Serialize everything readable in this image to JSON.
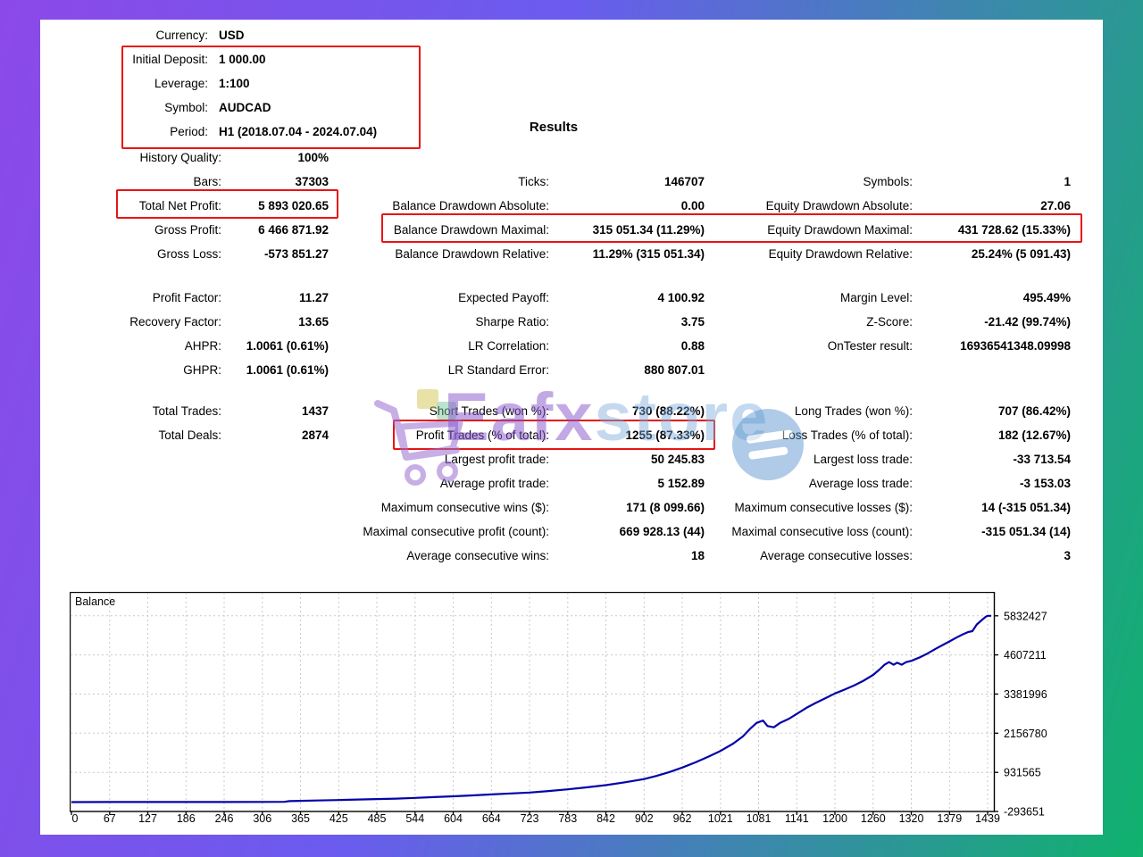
{
  "header": {
    "results_title": "Results",
    "rows": [
      {
        "label": "Currency:",
        "value": "USD"
      },
      {
        "label": "Initial Deposit:",
        "value": "1 000.00"
      },
      {
        "label": "Leverage:",
        "value": "1:100"
      },
      {
        "label": "Symbol:",
        "value": "AUDCAD"
      },
      {
        "label": "Period:",
        "value": "H1 (2018.07.04 - 2024.07.04)"
      }
    ]
  },
  "stats": {
    "blocks": [
      {
        "gap_class": "",
        "rows": [
          [
            {
              "l": "History Quality:",
              "v": "100%"
            },
            null,
            null
          ],
          [
            {
              "l": "Bars:",
              "v": "37303"
            },
            {
              "l": "Ticks:",
              "v": "146707"
            },
            {
              "l": "Symbols:",
              "v": "1"
            }
          ],
          [
            {
              "l": "Total Net Profit:",
              "v": "5 893 020.65"
            },
            {
              "l": "Balance Drawdown Absolute:",
              "v": "0.00"
            },
            {
              "l": "Equity Drawdown Absolute:",
              "v": "27.06"
            }
          ],
          [
            {
              "l": "Gross Profit:",
              "v": "6 466 871.92"
            },
            {
              "l": "Balance Drawdown Maximal:",
              "v": "315 051.34 (11.29%)"
            },
            {
              "l": "Equity Drawdown Maximal:",
              "v": "431 728.62 (15.33%)"
            }
          ],
          [
            {
              "l": "Gross Loss:",
              "v": "-573 851.27"
            },
            {
              "l": "Balance Drawdown Relative:",
              "v": "11.29% (315 051.34)"
            },
            {
              "l": "Equity Drawdown Relative:",
              "v": "25.24% (5 091.43)"
            }
          ]
        ]
      },
      {
        "gap_class": "blockgap2",
        "rows": [
          [
            {
              "l": "Profit Factor:",
              "v": "11.27"
            },
            {
              "l": "Expected Payoff:",
              "v": "4 100.92"
            },
            {
              "l": "Margin Level:",
              "v": "495.49%"
            }
          ],
          [
            {
              "l": "Recovery Factor:",
              "v": "13.65"
            },
            {
              "l": "Sharpe Ratio:",
              "v": "3.75"
            },
            {
              "l": "Z-Score:",
              "v": "-21.42 (99.74%)"
            }
          ],
          [
            {
              "l": "AHPR:",
              "v": "1.0061 (0.61%)"
            },
            {
              "l": "LR Correlation:",
              "v": "0.88"
            },
            {
              "l": "OnTester result:",
              "v": "16936541348.09998"
            }
          ],
          [
            {
              "l": "GHPR:",
              "v": "1.0061 (0.61%)"
            },
            {
              "l": "LR Standard Error:",
              "v": "880 807.01"
            },
            null
          ]
        ]
      },
      {
        "gap_class": "blockgap3",
        "rows": [
          [
            {
              "l": "Total Trades:",
              "v": "1437"
            },
            {
              "l": "Short Trades (won %):",
              "v": "730 (88.22%)"
            },
            {
              "l": "Long Trades (won %):",
              "v": "707 (86.42%)"
            }
          ],
          [
            {
              "l": "Total Deals:",
              "v": "2874"
            },
            {
              "l": "Profit Trades (% of total):",
              "v": "1255 (87.33%)"
            },
            {
              "l": "Loss Trades (% of total):",
              "v": "182 (12.67%)"
            }
          ],
          [
            null,
            {
              "l": "Largest profit trade:",
              "v": "50 245.83"
            },
            {
              "l": "Largest loss trade:",
              "v": "-33 713.54"
            }
          ],
          [
            null,
            {
              "l": "Average profit trade:",
              "v": "5 152.89"
            },
            {
              "l": "Average loss trade:",
              "v": "-3 153.03"
            }
          ],
          [
            null,
            {
              "l": "Maximum consecutive wins ($):",
              "v": "171 (8 099.66)"
            },
            {
              "l": "Maximum consecutive losses ($):",
              "v": "14 (-315 051.34)"
            }
          ],
          [
            null,
            {
              "l": "Maximal consecutive profit (count):",
              "v": "669 928.13 (44)"
            },
            {
              "l": "Maximal consecutive loss (count):",
              "v": "-315 051.34 (14)"
            }
          ],
          [
            null,
            {
              "l": "Average consecutive wins:",
              "v": "18"
            },
            {
              "l": "Average consecutive losses:",
              "v": "3"
            }
          ]
        ]
      }
    ]
  },
  "watermark": {
    "text_primary": "Eafx",
    "text_secondary": "store",
    "color_primary": "#8654cb",
    "color_secondary": "#7daadb"
  },
  "chart_data": {
    "type": "line",
    "title": "Balance",
    "legend_position": "top-left-inside",
    "grid": "dashed",
    "line_color": "#0303a8",
    "x_ticks": [
      0,
      67,
      127,
      186,
      246,
      306,
      365,
      425,
      485,
      544,
      604,
      664,
      723,
      783,
      842,
      902,
      962,
      1021,
      1081,
      1141,
      1200,
      1260,
      1320,
      1379,
      1439
    ],
    "y_ticks": [
      5832427,
      4607211,
      3381996,
      2156780,
      931565,
      -293651
    ],
    "y_min": -293651,
    "y_grid_step": 1225216,
    "xlim": [
      0,
      1455
    ],
    "ylim": [
      -293651,
      6580000
    ],
    "series": [
      {
        "name": "Balance",
        "points": [
          [
            0,
            1000
          ],
          [
            67,
            1200
          ],
          [
            127,
            1500
          ],
          [
            186,
            2000
          ],
          [
            246,
            3000
          ],
          [
            306,
            5000
          ],
          [
            340,
            8000
          ],
          [
            348,
            30000
          ],
          [
            365,
            40000
          ],
          [
            390,
            50000
          ],
          [
            425,
            65000
          ],
          [
            455,
            80000
          ],
          [
            485,
            95000
          ],
          [
            515,
            110000
          ],
          [
            544,
            130000
          ],
          [
            574,
            155000
          ],
          [
            604,
            180000
          ],
          [
            634,
            210000
          ],
          [
            664,
            240000
          ],
          [
            694,
            270000
          ],
          [
            723,
            300000
          ],
          [
            753,
            345000
          ],
          [
            783,
            400000
          ],
          [
            812,
            460000
          ],
          [
            842,
            530000
          ],
          [
            872,
            620000
          ],
          [
            902,
            720000
          ],
          [
            922,
            820000
          ],
          [
            942,
            940000
          ],
          [
            962,
            1080000
          ],
          [
            982,
            1240000
          ],
          [
            1002,
            1420000
          ],
          [
            1021,
            1600000
          ],
          [
            1041,
            1830000
          ],
          [
            1056,
            2050000
          ],
          [
            1068,
            2300000
          ],
          [
            1078,
            2480000
          ],
          [
            1088,
            2550000
          ],
          [
            1095,
            2380000
          ],
          [
            1105,
            2340000
          ],
          [
            1115,
            2480000
          ],
          [
            1128,
            2600000
          ],
          [
            1141,
            2760000
          ],
          [
            1156,
            2950000
          ],
          [
            1170,
            3100000
          ],
          [
            1185,
            3250000
          ],
          [
            1200,
            3400000
          ],
          [
            1215,
            3520000
          ],
          [
            1230,
            3650000
          ],
          [
            1245,
            3800000
          ],
          [
            1260,
            3980000
          ],
          [
            1270,
            4150000
          ],
          [
            1278,
            4300000
          ],
          [
            1285,
            4380000
          ],
          [
            1292,
            4300000
          ],
          [
            1298,
            4360000
          ],
          [
            1305,
            4300000
          ],
          [
            1312,
            4380000
          ],
          [
            1320,
            4420000
          ],
          [
            1332,
            4520000
          ],
          [
            1345,
            4650000
          ],
          [
            1358,
            4800000
          ],
          [
            1370,
            4930000
          ],
          [
            1379,
            5030000
          ],
          [
            1390,
            5150000
          ],
          [
            1400,
            5250000
          ],
          [
            1408,
            5320000
          ],
          [
            1415,
            5350000
          ],
          [
            1422,
            5560000
          ],
          [
            1430,
            5700000
          ],
          [
            1436,
            5800000
          ],
          [
            1439,
            5832427
          ],
          [
            1453,
            5832427
          ]
        ]
      }
    ]
  },
  "colors": {
    "annotation_red": "#e81414",
    "frame_gradient_left": "#8c49e9",
    "frame_gradient_right": "#0fb26d",
    "chart_line": "#0303a8"
  }
}
